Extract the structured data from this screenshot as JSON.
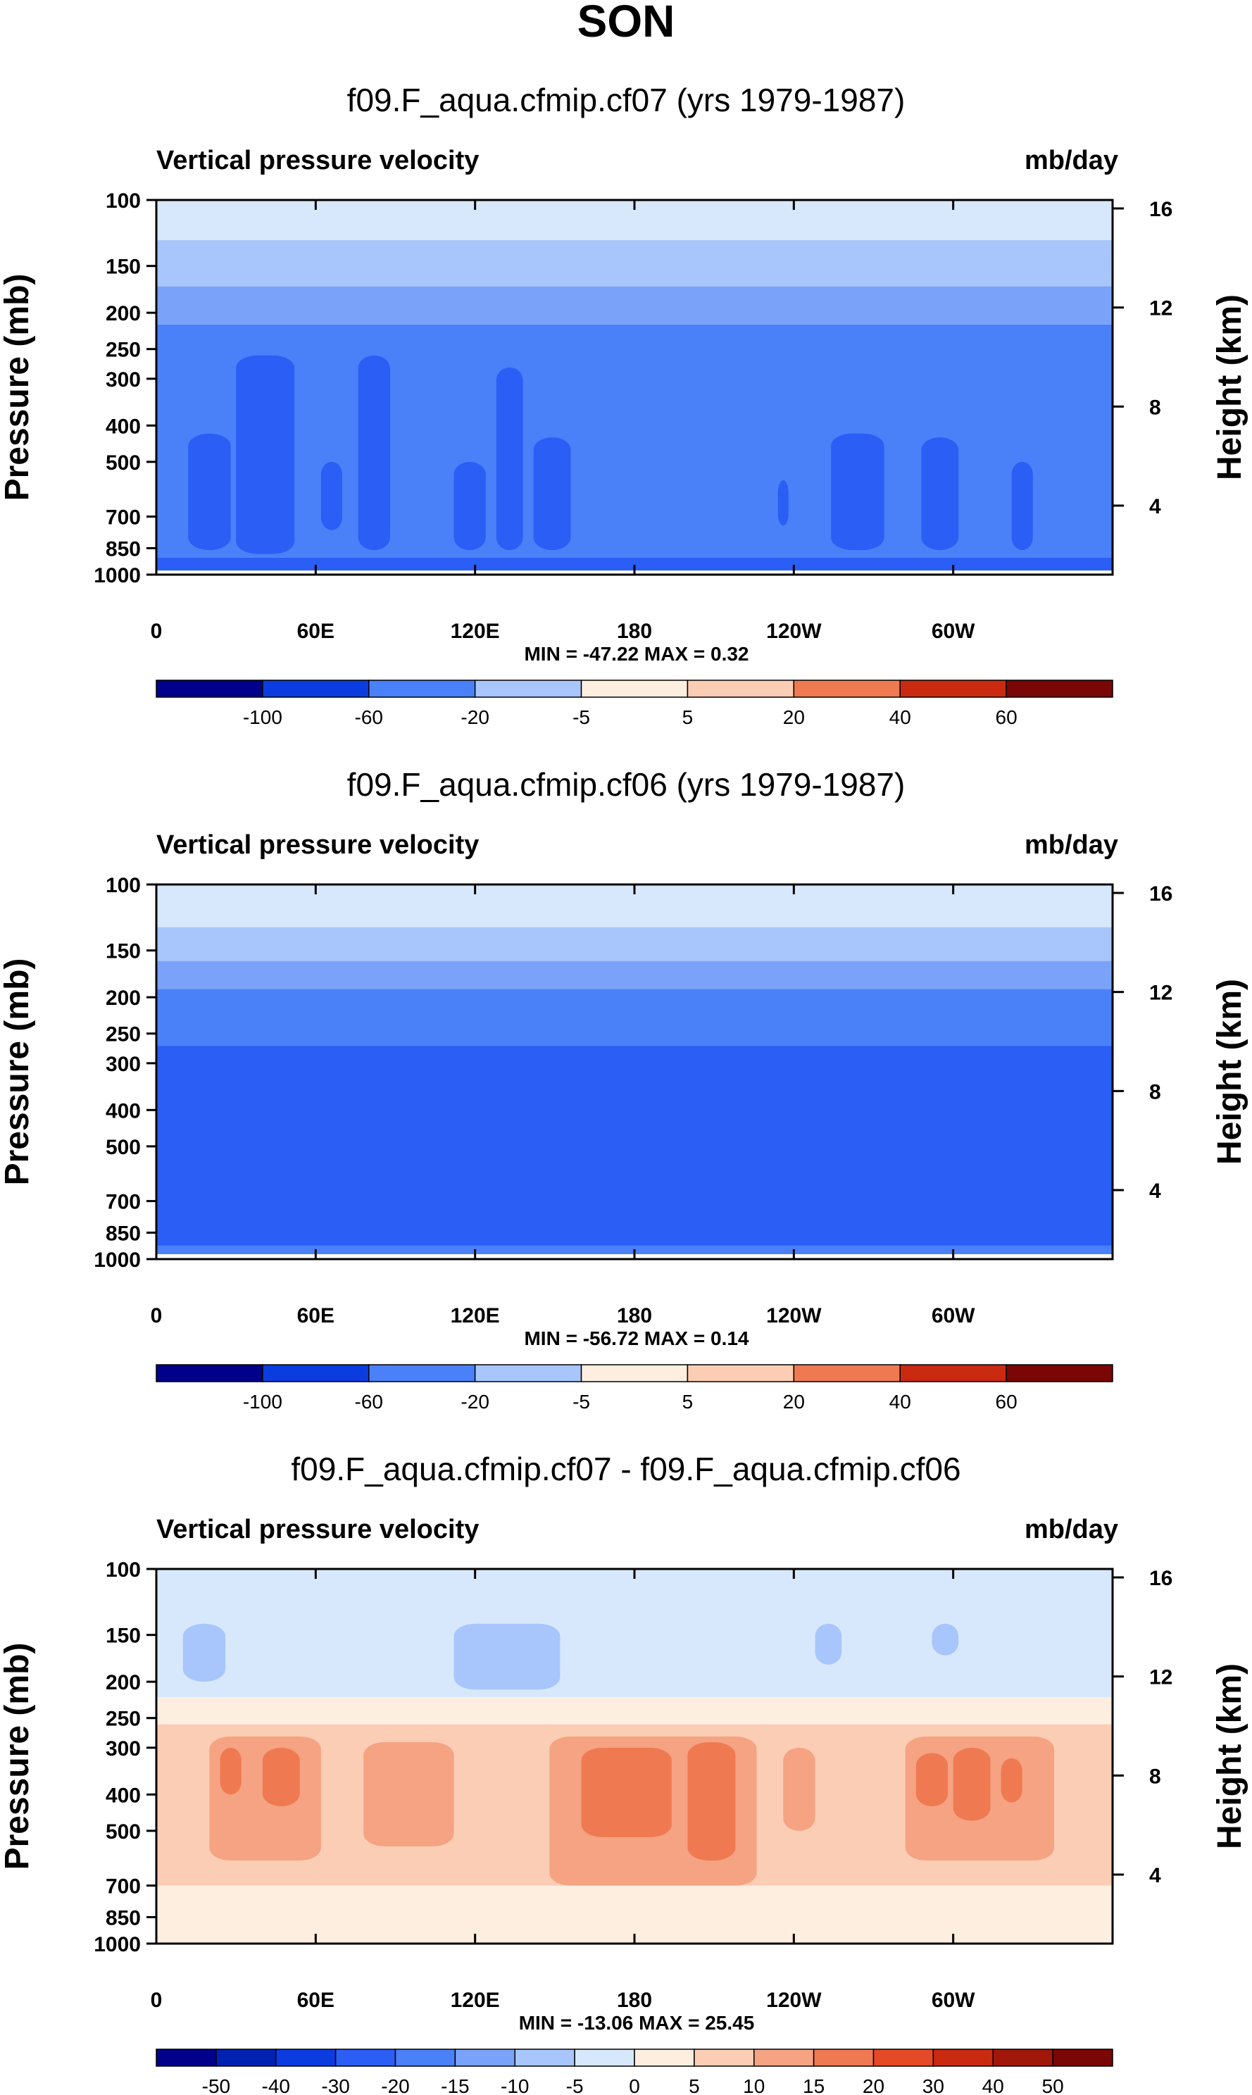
{
  "title": "SON",
  "colors": {
    "frame": "#000000",
    "scale_a": [
      "#00008a",
      "#0022b0",
      "#0a3ce0",
      "#2a5ef5",
      "#4a80f8",
      "#7aa2f8",
      "#a8c6fb",
      "#d8e8fc",
      "#fdeee0",
      "#fbcdb4",
      "#f5a382",
      "#ef7a52",
      "#e44a26",
      "#c92a10",
      "#a1170a",
      "#7a0606"
    ],
    "scale_b": [
      "#00008a",
      "#0022b0",
      "#0a3ce0",
      "#2a5ef5",
      "#4a80f8",
      "#7aa2f8",
      "#a8c6fb",
      "#d8e8fc",
      "#fdeee0",
      "#fbcdb4",
      "#f5a382",
      "#ef7a52",
      "#e44a26",
      "#c92a10",
      "#a1170a",
      "#7a0606"
    ]
  },
  "chart_data": [
    {
      "type": "heatmap",
      "title": "f09.F_aqua.cfmip.cf07 (yrs 1979-1987)",
      "left_label": "Vertical pressure velocity",
      "right_label": "mb/day",
      "ylabel": "Pressure (mb)",
      "y2label": "Height (km)",
      "yticks": [
        100,
        150,
        200,
        250,
        300,
        400,
        500,
        700,
        850,
        1000
      ],
      "ylim": [
        100,
        1000
      ],
      "yscale": "log",
      "y2ticks": [
        16,
        12,
        8,
        4
      ],
      "xticks": [
        "0",
        "60E",
        "120E",
        "180",
        "120W",
        "60W"
      ],
      "xtick_lons": [
        0,
        60,
        120,
        180,
        240,
        300
      ],
      "xlim": [
        0,
        360
      ],
      "stats": "MIN = -47.22   MAX =   0.32",
      "levels": [
        "-100",
        "-60",
        "-20",
        "-5",
        "5",
        "20",
        "40",
        "60"
      ],
      "scale": "scale_a",
      "bands": [
        {
          "bin": 3,
          "top": 900,
          "bot": 975
        },
        {
          "bin": 4,
          "top": 215,
          "bot": 900
        },
        {
          "bin": 5,
          "top": 170,
          "bot": 215
        },
        {
          "bin": 6,
          "top": 128,
          "bot": 170
        },
        {
          "bin": 7,
          "top": 100,
          "bot": 128
        }
      ],
      "blobs": [
        {
          "bin": 3,
          "lon0": 12,
          "lon1": 28,
          "ptop": 420,
          "pbot": 860
        },
        {
          "bin": 3,
          "lon0": 30,
          "lon1": 52,
          "ptop": 260,
          "pbot": 880
        },
        {
          "bin": 3,
          "lon0": 62,
          "lon1": 70,
          "ptop": 500,
          "pbot": 760
        },
        {
          "bin": 3,
          "lon0": 76,
          "lon1": 88,
          "ptop": 260,
          "pbot": 860
        },
        {
          "bin": 3,
          "lon0": 112,
          "lon1": 124,
          "ptop": 500,
          "pbot": 860
        },
        {
          "bin": 3,
          "lon0": 128,
          "lon1": 138,
          "ptop": 280,
          "pbot": 860
        },
        {
          "bin": 3,
          "lon0": 142,
          "lon1": 156,
          "ptop": 430,
          "pbot": 860
        },
        {
          "bin": 3,
          "lon0": 234,
          "lon1": 238,
          "ptop": 560,
          "pbot": 740
        },
        {
          "bin": 3,
          "lon0": 254,
          "lon1": 274,
          "ptop": 420,
          "pbot": 860
        },
        {
          "bin": 3,
          "lon0": 288,
          "lon1": 302,
          "ptop": 430,
          "pbot": 860
        },
        {
          "bin": 3,
          "lon0": 322,
          "lon1": 330,
          "ptop": 500,
          "pbot": 860
        }
      ]
    },
    {
      "type": "heatmap",
      "title": "f09.F_aqua.cfmip.cf06 (yrs 1979-1987)",
      "left_label": "Vertical pressure velocity",
      "right_label": "mb/day",
      "ylabel": "Pressure (mb)",
      "y2label": "Height (km)",
      "yticks": [
        100,
        150,
        200,
        250,
        300,
        400,
        500,
        700,
        850,
        1000
      ],
      "ylim": [
        100,
        1000
      ],
      "yscale": "log",
      "y2ticks": [
        16,
        12,
        8,
        4
      ],
      "xticks": [
        "0",
        "60E",
        "120E",
        "180",
        "120W",
        "60W"
      ],
      "xtick_lons": [
        0,
        60,
        120,
        180,
        240,
        300
      ],
      "xlim": [
        0,
        360
      ],
      "stats": "MIN = -56.72   MAX =   0.14",
      "levels": [
        "-100",
        "-60",
        "-20",
        "-5",
        "5",
        "20",
        "40",
        "60"
      ],
      "scale": "scale_a",
      "bands": [
        {
          "bin": 4,
          "top": 190,
          "bot": 970
        },
        {
          "bin": 3,
          "top": 270,
          "bot": 920
        },
        {
          "bin": 5,
          "top": 160,
          "bot": 190
        },
        {
          "bin": 6,
          "top": 130,
          "bot": 160
        },
        {
          "bin": 7,
          "top": 100,
          "bot": 130
        }
      ],
      "blobs": []
    },
    {
      "type": "heatmap",
      "title": "f09.F_aqua.cfmip.cf07 - f09.F_aqua.cfmip.cf06",
      "left_label": "Vertical pressure velocity",
      "right_label": "mb/day",
      "ylabel": "Pressure (mb)",
      "y2label": "Height (km)",
      "yticks": [
        100,
        150,
        200,
        250,
        300,
        400,
        500,
        700,
        850,
        1000
      ],
      "ylim": [
        100,
        1000
      ],
      "yscale": "log",
      "y2ticks": [
        16,
        12,
        8,
        4
      ],
      "xticks": [
        "0",
        "60E",
        "120E",
        "180",
        "120W",
        "60W"
      ],
      "xtick_lons": [
        0,
        60,
        120,
        180,
        240,
        300
      ],
      "xlim": [
        0,
        360
      ],
      "stats": "MIN = -13.06   MAX = 25.45",
      "levels": [
        "-50",
        "-40",
        "-30",
        "-20",
        "-15",
        "-10",
        "-5",
        "0",
        "5",
        "10",
        "15",
        "20",
        "30",
        "40",
        "50"
      ],
      "scale": "scale_b",
      "bands": [
        {
          "bin": 7,
          "top": 100,
          "bot": 220
        },
        {
          "bin": 8,
          "top": 220,
          "bot": 1000
        },
        {
          "bin": 9,
          "top": 260,
          "bot": 700
        }
      ],
      "blobs": [
        {
          "bin": 6,
          "lon0": 10,
          "lon1": 26,
          "ptop": 140,
          "pbot": 200
        },
        {
          "bin": 6,
          "lon0": 112,
          "lon1": 152,
          "ptop": 140,
          "pbot": 210
        },
        {
          "bin": 6,
          "lon0": 248,
          "lon1": 258,
          "ptop": 140,
          "pbot": 180
        },
        {
          "bin": 6,
          "lon0": 292,
          "lon1": 302,
          "ptop": 140,
          "pbot": 170
        },
        {
          "bin": 10,
          "lon0": 20,
          "lon1": 62,
          "ptop": 280,
          "pbot": 600
        },
        {
          "bin": 10,
          "lon0": 78,
          "lon1": 112,
          "ptop": 290,
          "pbot": 550
        },
        {
          "bin": 10,
          "lon0": 148,
          "lon1": 226,
          "ptop": 280,
          "pbot": 700
        },
        {
          "bin": 10,
          "lon0": 236,
          "lon1": 248,
          "ptop": 300,
          "pbot": 500
        },
        {
          "bin": 10,
          "lon0": 282,
          "lon1": 338,
          "ptop": 280,
          "pbot": 600
        },
        {
          "bin": 11,
          "lon0": 24,
          "lon1": 32,
          "ptop": 300,
          "pbot": 400
        },
        {
          "bin": 11,
          "lon0": 40,
          "lon1": 54,
          "ptop": 300,
          "pbot": 430
        },
        {
          "bin": 11,
          "lon0": 160,
          "lon1": 194,
          "ptop": 300,
          "pbot": 520
        },
        {
          "bin": 11,
          "lon0": 200,
          "lon1": 218,
          "ptop": 290,
          "pbot": 600
        },
        {
          "bin": 11,
          "lon0": 286,
          "lon1": 298,
          "ptop": 310,
          "pbot": 430
        },
        {
          "bin": 11,
          "lon0": 300,
          "lon1": 314,
          "ptop": 300,
          "pbot": 470
        },
        {
          "bin": 11,
          "lon0": 318,
          "lon1": 326,
          "ptop": 320,
          "pbot": 420
        }
      ]
    }
  ]
}
